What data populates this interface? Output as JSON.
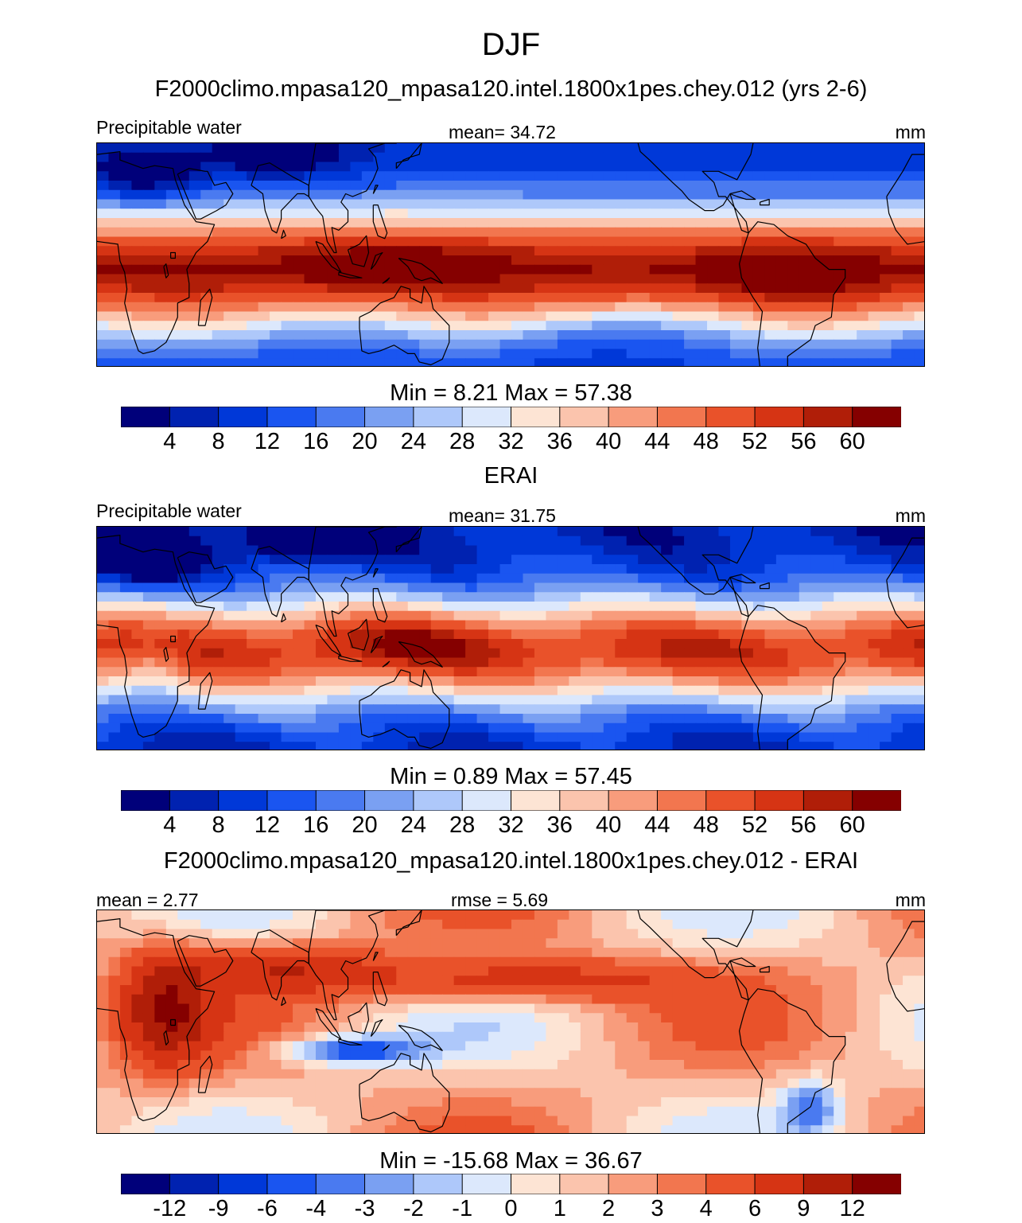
{
  "title": "DJF",
  "panels": [
    {
      "heading": "F2000climo.mpasa120_mpasa120.intel.1800x1pes.chey.012 (yrs 2-6)",
      "left_label": "Precipitable water",
      "center_label": "mean=  34.72",
      "units": "mm",
      "minmax": "Min =   8.21 Max =  57.38",
      "colorbar_labels": [
        "4",
        "8",
        "12",
        "16",
        "20",
        "24",
        "28",
        "32",
        "36",
        "40",
        "44",
        "48",
        "52",
        "56",
        "60"
      ],
      "field": "model"
    },
    {
      "heading": "ERAI",
      "left_label": "Precipitable water",
      "center_label": "mean=  31.75",
      "units": "mm",
      "minmax": "Min =   0.89 Max =  57.45",
      "colorbar_labels": [
        "4",
        "8",
        "12",
        "16",
        "20",
        "24",
        "28",
        "32",
        "36",
        "40",
        "44",
        "48",
        "52",
        "56",
        "60"
      ],
      "field": "obs"
    },
    {
      "heading": "F2000climo.mpasa120_mpasa120.intel.1800x1pes.chey.012 - ERAI",
      "left_label": "mean =   2.77",
      "center_label": "rmse =   5.69",
      "units": "mm",
      "minmax": "Min = -15.68 Max =  36.67",
      "colorbar_labels": [
        "-12",
        "-9",
        "-6",
        "-4",
        "-3",
        "-2",
        "-1",
        "0",
        "1",
        "2",
        "3",
        "4",
        "6",
        "9",
        "12"
      ],
      "field": "diff"
    }
  ],
  "colors": {
    "palette": [
      "#00007a",
      "#0022b0",
      "#0038d8",
      "#1a55f0",
      "#4a7af0",
      "#7aa0f2",
      "#aec8fa",
      "#dce8fc",
      "#fde4d4",
      "#fbc4ad",
      "#f89c7c",
      "#f2764f",
      "#e9522a",
      "#d63414",
      "#b01e08",
      "#850000"
    ],
    "coastline": "#000000"
  },
  "map": {
    "projection": "cylindrical equidistant",
    "lon_range": [
      0,
      360
    ],
    "lat_range": [
      -40,
      40
    ]
  }
}
